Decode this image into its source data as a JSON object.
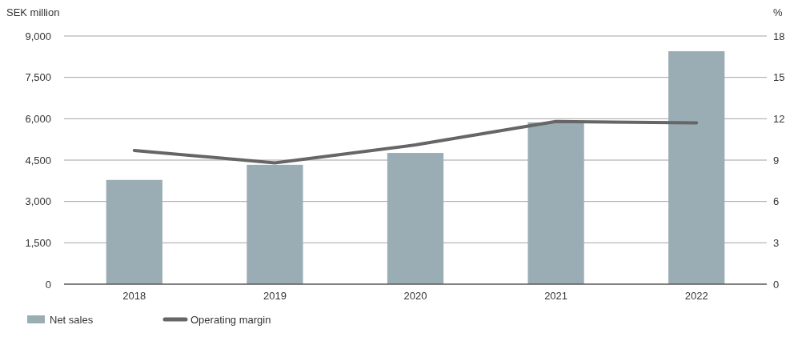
{
  "chart_data": {
    "type": "bar",
    "ylabel": "SEK million",
    "y2label": "%",
    "categories": [
      "2018",
      "2019",
      "2020",
      "2021",
      "2022"
    ],
    "series": [
      {
        "name": "Net sales",
        "color": "#9aadb4",
        "values": [
          3780,
          4330,
          4760,
          5870,
          8450
        ]
      },
      {
        "name": "Operating margin",
        "type": "line",
        "axis": "y2",
        "color": "#666666",
        "values": [
          9.7,
          8.8,
          10.1,
          11.8,
          11.7
        ]
      }
    ],
    "ylim": [
      0,
      9000
    ],
    "yticks": [
      {
        "value": 0,
        "label": "0"
      },
      {
        "value": 1500,
        "label": "1,500"
      },
      {
        "value": 3000,
        "label": "3,000"
      },
      {
        "value": 4500,
        "label": "4,500"
      },
      {
        "value": 6000,
        "label": "6,000"
      },
      {
        "value": 7500,
        "label": "7,500"
      },
      {
        "value": 9000,
        "label": "9,000"
      }
    ],
    "y2lim": [
      0,
      18
    ],
    "y2ticks": [
      0,
      3,
      6,
      9,
      12,
      15,
      18
    ],
    "grid": "y",
    "legend": "bottom left",
    "marker": "none",
    "line_style": "solid"
  }
}
